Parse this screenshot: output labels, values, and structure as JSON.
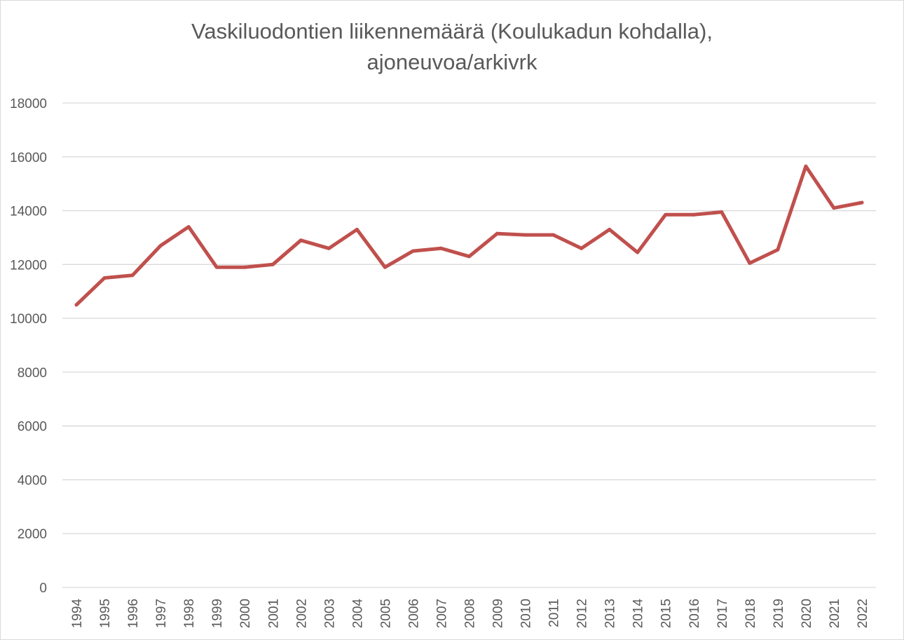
{
  "chart_data": {
    "type": "line",
    "title_lines": [
      "Vaskiluodontien liikennemäärä (Koulukadun kohdalla),",
      "ajoneuvoa/arkivrk"
    ],
    "xlabel": "",
    "ylabel": "",
    "categories": [
      "1994",
      "1995",
      "1996",
      "1997",
      "1998",
      "1999",
      "2000",
      "2001",
      "2002",
      "2003",
      "2004",
      "2005",
      "2006",
      "2007",
      "2008",
      "2009",
      "2010",
      "2011",
      "2012",
      "2013",
      "2014",
      "2015",
      "2016",
      "2017",
      "2018",
      "2019",
      "2020",
      "2021",
      "2022"
    ],
    "series": [
      {
        "values": [
          10500,
          11500,
          11600,
          12700,
          13400,
          11900,
          11900,
          12000,
          12900,
          12600,
          13300,
          11900,
          12500,
          12600,
          12300,
          13150,
          13100,
          13100,
          12600,
          13300,
          12450,
          13850,
          13850,
          13950,
          12050,
          12550,
          15650,
          14100,
          14300
        ],
        "color": "#c0504d"
      }
    ],
    "ylim": [
      0,
      18000
    ],
    "yticks": [
      0,
      2000,
      4000,
      6000,
      8000,
      10000,
      12000,
      14000,
      16000,
      18000
    ],
    "grid": true,
    "legend": "none"
  }
}
